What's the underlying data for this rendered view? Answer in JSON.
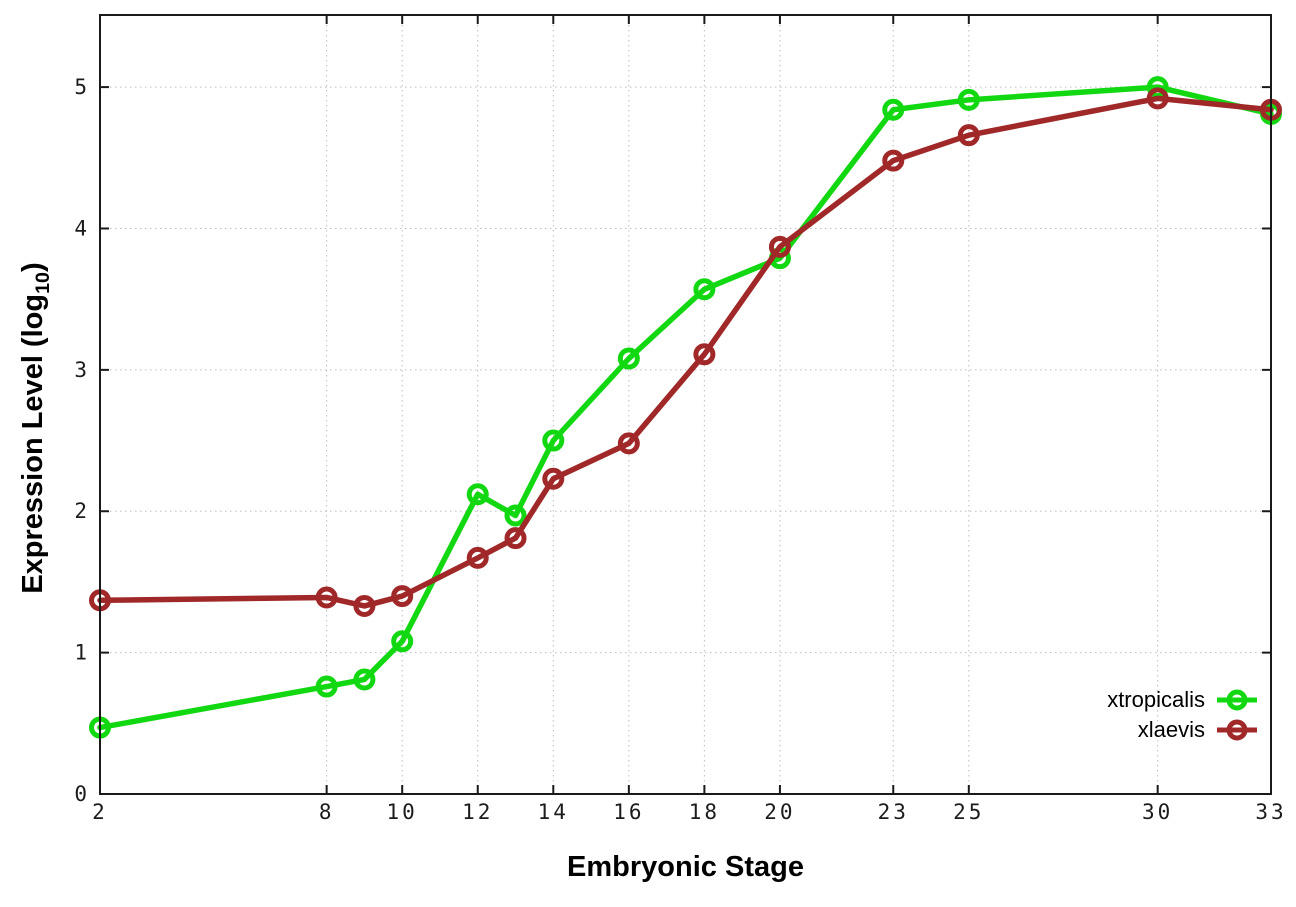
{
  "chart_data": {
    "type": "line",
    "title": "",
    "xlabel": "Embryonic Stage",
    "ylabel": "Expression Level (log10)",
    "ylabel_parts": {
      "prefix": "Expression Level (log",
      "subscript": "10",
      "suffix": ")"
    },
    "x": [
      2,
      8,
      9,
      10,
      12,
      13,
      14,
      16,
      18,
      20,
      23,
      25,
      30,
      33
    ],
    "series": [
      {
        "name": "xtropicalis",
        "color": "#12d812",
        "marker": "open-circle",
        "values": [
          0.47,
          0.76,
          0.81,
          1.08,
          2.12,
          1.97,
          2.5,
          3.08,
          3.57,
          3.79,
          4.84,
          4.91,
          5.0,
          4.81
        ]
      },
      {
        "name": "xlaevis",
        "color": "#a02828",
        "marker": "open-circle",
        "values": [
          1.37,
          1.39,
          1.33,
          1.4,
          1.67,
          1.81,
          2.23,
          2.48,
          3.11,
          3.87,
          4.48,
          4.66,
          4.92,
          4.84
        ]
      }
    ],
    "xticks": [
      2,
      8,
      10,
      12,
      14,
      16,
      18,
      20,
      23,
      25,
      30,
      33
    ],
    "yticks": [
      0,
      1,
      2,
      3,
      4,
      5
    ],
    "xlim": [
      2,
      33
    ],
    "ylim": [
      0,
      5.51
    ],
    "grid": true,
    "legend": {
      "position": "inside-bottom-right",
      "entries": [
        "xtropicalis",
        "xlaevis"
      ]
    },
    "style": {
      "axis_color": "#1a1a1a",
      "grid_color": "#bdbdbd",
      "tick_label_color": "#1c1c1c",
      "background": "#ffffff"
    }
  }
}
